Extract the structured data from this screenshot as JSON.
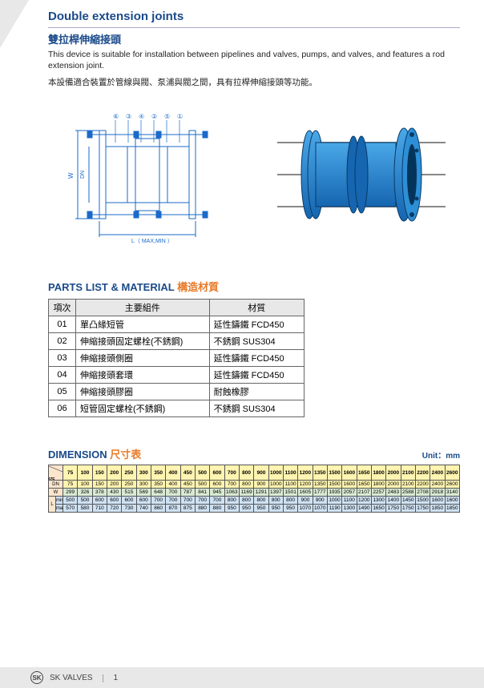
{
  "header": {
    "title_en": "Double extension joints",
    "title_zh": "雙拉桿伸縮接頭",
    "desc_en": "This device is suitable for installation between pipelines and valves, pumps, and valves, and features a rod extension joint.",
    "desc_zh": "本設備適合裝置於管線與閥、泵浦與閥之間，具有拉桿伸縮接頭等功能。"
  },
  "diagram": {
    "callouts": [
      "⑥",
      "③",
      "④",
      "②",
      "⑤",
      "①"
    ],
    "dim_w": "W",
    "dim_dn": "DN",
    "dim_l": "L（ MAX,MIN ）",
    "line_color": "#1a6aca",
    "render_color": "#2d8fd6"
  },
  "parts": {
    "title_en": "PARTS LIST & MATERIAL",
    "title_zh": "構造材質",
    "columns": [
      "項次",
      "主要組件",
      "材質"
    ],
    "rows": [
      [
        "01",
        "單凸緣短管",
        "延性鑄鐵 FCD450"
      ],
      [
        "02",
        "伸縮接頭固定螺栓(不銹鋼)",
        "不銹鋼 SUS304"
      ],
      [
        "03",
        "伸縮接頭側圈",
        "延性鑄鐵 FCD450"
      ],
      [
        "04",
        "伸縮接頭套環",
        "延性鑄鐵 FCD450"
      ],
      [
        "05",
        "伸縮接頭膠圈",
        "耐蝕橡膠"
      ],
      [
        "06",
        "短管固定螺栓(不銹鋼)",
        "不銹鋼 SUS304"
      ]
    ]
  },
  "dimension": {
    "title_en": "DIMENSION",
    "title_zh": "尺寸表",
    "unit": "Unit：mm",
    "dim_label": "DIM",
    "size_label": "SIZE",
    "sizes": [
      "75",
      "100",
      "150",
      "200",
      "250",
      "300",
      "350",
      "400",
      "450",
      "500",
      "600",
      "700",
      "800",
      "900",
      "1000",
      "1100",
      "1200",
      "1350",
      "1500",
      "1600",
      "1650",
      "1800",
      "2000",
      "2100",
      "2200",
      "2400",
      "2600"
    ],
    "dn": [
      "75",
      "100",
      "150",
      "200",
      "250",
      "300",
      "350",
      "400",
      "450",
      "500",
      "600",
      "700",
      "800",
      "900",
      "1000",
      "1100",
      "1200",
      "1350",
      "1500",
      "1600",
      "1650",
      "1800",
      "2000",
      "2100",
      "2200",
      "2400",
      "2600"
    ],
    "w": [
      "299",
      "326",
      "378",
      "430",
      "515",
      "569",
      "648",
      "700",
      "787",
      "841",
      "945",
      "1063",
      "1169",
      "1291",
      "1397",
      "1501",
      "1605",
      "1777",
      "1935",
      "2057",
      "2107",
      "2257",
      "2483",
      "2588",
      "2708",
      "2918",
      "3140"
    ],
    "l_label": "L",
    "l_min_label": "min",
    "l_max_label": "max",
    "l_min": [
      "500",
      "500",
      "600",
      "600",
      "600",
      "600",
      "700",
      "700",
      "700",
      "700",
      "700",
      "800",
      "800",
      "800",
      "800",
      "800",
      "900",
      "900",
      "1000",
      "1100",
      "1200",
      "1300",
      "1400",
      "1450",
      "1500",
      "1600",
      "1600"
    ],
    "l_max": [
      "570",
      "580",
      "710",
      "720",
      "730",
      "740",
      "860",
      "870",
      "875",
      "880",
      "880",
      "950",
      "950",
      "950",
      "950",
      "950",
      "1070",
      "1070",
      "1190",
      "1300",
      "1490",
      "1650",
      "1750",
      "1750",
      "1750",
      "1850",
      "1850"
    ]
  },
  "footer": {
    "brand": "SK VALVES",
    "page": "1",
    "logo_text": "SK"
  }
}
